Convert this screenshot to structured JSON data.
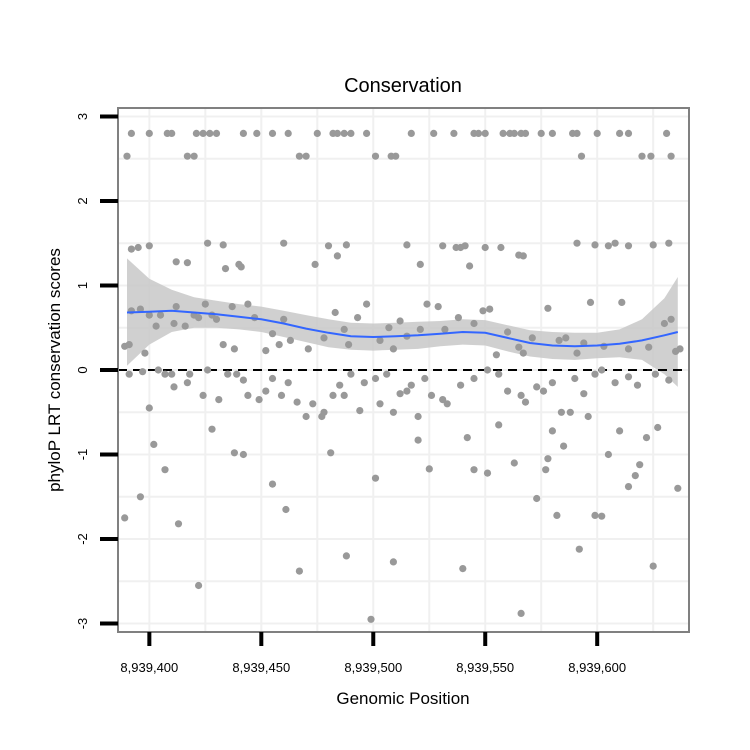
{
  "chart_data": {
    "type": "scatter",
    "title": "Conservation",
    "xlabel": "Genomic Position",
    "ylabel": "phyloP LRT conservation scores",
    "xlim": [
      8939386,
      8939641
    ],
    "ylim": [
      -3.1,
      3.1
    ],
    "x_ticks": [
      8939400,
      8939450,
      8939500,
      8939550,
      8939600
    ],
    "x_tick_labels": [
      "8,939,400",
      "8,939,450",
      "8,939,500",
      "8,939,550",
      "8,939,600"
    ],
    "y_ticks": [
      3,
      2,
      1,
      0,
      -1,
      -2,
      -3
    ],
    "y_tick_labels": [
      "3",
      "2",
      "1",
      "0",
      "-1",
      "-2",
      "-3"
    ],
    "grid": true,
    "reference_line": {
      "y": 0,
      "style": "dashed"
    },
    "colors": {
      "points": "#999999",
      "smooth": "#3366ff",
      "band": "#c8c8c8",
      "panel_border": "#808080",
      "grid": "#f0f0f0"
    },
    "points": [
      [
        8939390,
        2.53
      ],
      [
        8939392,
        2.8
      ],
      [
        8939400,
        2.8
      ],
      [
        8939408,
        2.8
      ],
      [
        8939410,
        2.8
      ],
      [
        8939417,
        2.53
      ],
      [
        8939420,
        2.53
      ],
      [
        8939421,
        2.8
      ],
      [
        8939424,
        2.8
      ],
      [
        8939427,
        2.8
      ],
      [
        8939430,
        2.8
      ],
      [
        8939442,
        2.8
      ],
      [
        8939448,
        2.8
      ],
      [
        8939455,
        2.8
      ],
      [
        8939462,
        2.8
      ],
      [
        8939467,
        2.53
      ],
      [
        8939470,
        2.53
      ],
      [
        8939475,
        2.8
      ],
      [
        8939482,
        2.8
      ],
      [
        8939484,
        2.8
      ],
      [
        8939487,
        2.8
      ],
      [
        8939490,
        2.8
      ],
      [
        8939497,
        2.8
      ],
      [
        8939501,
        2.53
      ],
      [
        8939508,
        2.53
      ],
      [
        8939510,
        2.53
      ],
      [
        8939517,
        2.8
      ],
      [
        8939527,
        2.8
      ],
      [
        8939536,
        2.8
      ],
      [
        8939545,
        2.8
      ],
      [
        8939547,
        2.8
      ],
      [
        8939550,
        2.8
      ],
      [
        8939558,
        2.8
      ],
      [
        8939561,
        2.8
      ],
      [
        8939563,
        2.8
      ],
      [
        8939566,
        2.8
      ],
      [
        8939568,
        2.8
      ],
      [
        8939575,
        2.8
      ],
      [
        8939580,
        2.8
      ],
      [
        8939589,
        2.8
      ],
      [
        8939591,
        2.8
      ],
      [
        8939593,
        2.53
      ],
      [
        8939600,
        2.8
      ],
      [
        8939610,
        2.8
      ],
      [
        8939614,
        2.8
      ],
      [
        8939620,
        2.53
      ],
      [
        8939624,
        2.53
      ],
      [
        8939631,
        2.8
      ],
      [
        8939633,
        2.53
      ],
      [
        8939392,
        1.43
      ],
      [
        8939395,
        1.45
      ],
      [
        8939400,
        1.47
      ],
      [
        8939412,
        1.28
      ],
      [
        8939417,
        1.27
      ],
      [
        8939426,
        1.5
      ],
      [
        8939433,
        1.48
      ],
      [
        8939434,
        1.2
      ],
      [
        8939440,
        1.25
      ],
      [
        8939441,
        1.22
      ],
      [
        8939460,
        1.5
      ],
      [
        8939474,
        1.25
      ],
      [
        8939480,
        1.47
      ],
      [
        8939484,
        1.35
      ],
      [
        8939488,
        1.48
      ],
      [
        8939515,
        1.48
      ],
      [
        8939521,
        1.25
      ],
      [
        8939531,
        1.47
      ],
      [
        8939537,
        1.45
      ],
      [
        8939539,
        1.45
      ],
      [
        8939541,
        1.47
      ],
      [
        8939543,
        1.23
      ],
      [
        8939550,
        1.45
      ],
      [
        8939557,
        1.45
      ],
      [
        8939565,
        1.36
      ],
      [
        8939567,
        1.35
      ],
      [
        8939591,
        1.5
      ],
      [
        8939599,
        1.48
      ],
      [
        8939605,
        1.47
      ],
      [
        8939608,
        1.5
      ],
      [
        8939614,
        1.47
      ],
      [
        8939625,
        1.48
      ],
      [
        8939632,
        1.5
      ],
      [
        8939389,
        0.28
      ],
      [
        8939391,
        0.3
      ],
      [
        8939392,
        0.7
      ],
      [
        8939396,
        0.72
      ],
      [
        8939398,
        0.2
      ],
      [
        8939400,
        0.65
      ],
      [
        8939403,
        0.52
      ],
      [
        8939405,
        0.65
      ],
      [
        8939411,
        0.55
      ],
      [
        8939412,
        0.75
      ],
      [
        8939416,
        0.52
      ],
      [
        8939420,
        0.65
      ],
      [
        8939422,
        0.62
      ],
      [
        8939425,
        0.78
      ],
      [
        8939428,
        0.65
      ],
      [
        8939430,
        0.6
      ],
      [
        8939433,
        0.3
      ],
      [
        8939437,
        0.75
      ],
      [
        8939438,
        0.25
      ],
      [
        8939444,
        0.78
      ],
      [
        8939447,
        0.62
      ],
      [
        8939452,
        0.23
      ],
      [
        8939455,
        0.43
      ],
      [
        8939458,
        0.3
      ],
      [
        8939460,
        0.6
      ],
      [
        8939463,
        0.35
      ],
      [
        8939471,
        0.25
      ],
      [
        8939478,
        0.38
      ],
      [
        8939483,
        0.68
      ],
      [
        8939487,
        0.48
      ],
      [
        8939489,
        0.3
      ],
      [
        8939493,
        0.62
      ],
      [
        8939497,
        0.78
      ],
      [
        8939503,
        0.35
      ],
      [
        8939507,
        0.5
      ],
      [
        8939509,
        0.25
      ],
      [
        8939512,
        0.58
      ],
      [
        8939515,
        0.4
      ],
      [
        8939521,
        0.48
      ],
      [
        8939524,
        0.78
      ],
      [
        8939529,
        0.75
      ],
      [
        8939532,
        0.48
      ],
      [
        8939538,
        0.62
      ],
      [
        8939545,
        0.55
      ],
      [
        8939549,
        0.7
      ],
      [
        8939552,
        0.72
      ],
      [
        8939555,
        0.18
      ],
      [
        8939560,
        0.45
      ],
      [
        8939565,
        0.27
      ],
      [
        8939567,
        0.2
      ],
      [
        8939571,
        0.38
      ],
      [
        8939578,
        0.73
      ],
      [
        8939583,
        0.35
      ],
      [
        8939586,
        0.38
      ],
      [
        8939591,
        0.2
      ],
      [
        8939594,
        0.32
      ],
      [
        8939597,
        0.8
      ],
      [
        8939603,
        0.28
      ],
      [
        8939611,
        0.8
      ],
      [
        8939614,
        0.25
      ],
      [
        8939623,
        0.27
      ],
      [
        8939630,
        0.55
      ],
      [
        8939633,
        0.6
      ],
      [
        8939635,
        0.22
      ],
      [
        8939637,
        0.25
      ],
      [
        8939391,
        -0.05
      ],
      [
        8939397,
        -0.02
      ],
      [
        8939400,
        -0.45
      ],
      [
        8939404,
        0.0
      ],
      [
        8939407,
        -0.05
      ],
      [
        8939410,
        -0.05
      ],
      [
        8939411,
        -0.2
      ],
      [
        8939417,
        -0.15
      ],
      [
        8939418,
        -0.05
      ],
      [
        8939424,
        -0.3
      ],
      [
        8939426,
        0.0
      ],
      [
        8939431,
        -0.35
      ],
      [
        8939435,
        -0.05
      ],
      [
        8939439,
        -0.05
      ],
      [
        8939442,
        -0.12
      ],
      [
        8939444,
        -0.3
      ],
      [
        8939449,
        -0.35
      ],
      [
        8939452,
        -0.25
      ],
      [
        8939455,
        -0.1
      ],
      [
        8939459,
        -0.3
      ],
      [
        8939462,
        -0.15
      ],
      [
        8939466,
        -0.38
      ],
      [
        8939470,
        -0.55
      ],
      [
        8939473,
        -0.4
      ],
      [
        8939477,
        -0.55
      ],
      [
        8939478,
        -0.5
      ],
      [
        8939482,
        -0.3
      ],
      [
        8939485,
        -0.18
      ],
      [
        8939487,
        -0.3
      ],
      [
        8939490,
        -0.05
      ],
      [
        8939494,
        -0.48
      ],
      [
        8939496,
        -0.15
      ],
      [
        8939501,
        -0.1
      ],
      [
        8939503,
        -0.4
      ],
      [
        8939506,
        -0.05
      ],
      [
        8939509,
        -0.5
      ],
      [
        8939512,
        -0.28
      ],
      [
        8939515,
        -0.25
      ],
      [
        8939517,
        -0.18
      ],
      [
        8939520,
        -0.55
      ],
      [
        8939523,
        -0.1
      ],
      [
        8939526,
        -0.3
      ],
      [
        8939531,
        -0.35
      ],
      [
        8939533,
        -0.4
      ],
      [
        8939539,
        -0.18
      ],
      [
        8939545,
        -0.1
      ],
      [
        8939551,
        0.0
      ],
      [
        8939556,
        -0.05
      ],
      [
        8939560,
        -0.25
      ],
      [
        8939566,
        -0.3
      ],
      [
        8939568,
        -0.38
      ],
      [
        8939573,
        -0.2
      ],
      [
        8939576,
        -0.25
      ],
      [
        8939580,
        -0.15
      ],
      [
        8939584,
        -0.5
      ],
      [
        8939588,
        -0.5
      ],
      [
        8939590,
        -0.1
      ],
      [
        8939594,
        -0.28
      ],
      [
        8939599,
        -0.05
      ],
      [
        8939602,
        0.0
      ],
      [
        8939608,
        -0.15
      ],
      [
        8939614,
        -0.08
      ],
      [
        8939618,
        -0.18
      ],
      [
        8939626,
        -0.05
      ],
      [
        8939632,
        -0.12
      ],
      [
        8939389,
        -1.75
      ],
      [
        8939396,
        -1.5
      ],
      [
        8939402,
        -0.88
      ],
      [
        8939407,
        -1.18
      ],
      [
        8939413,
        -1.82
      ],
      [
        8939422,
        -2.55
      ],
      [
        8939428,
        -0.7
      ],
      [
        8939438,
        -0.98
      ],
      [
        8939442,
        -1.0
      ],
      [
        8939455,
        -1.35
      ],
      [
        8939461,
        -1.65
      ],
      [
        8939467,
        -2.38
      ],
      [
        8939481,
        -0.98
      ],
      [
        8939488,
        -2.2
      ],
      [
        8939499,
        -2.95
      ],
      [
        8939501,
        -1.28
      ],
      [
        8939509,
        -2.27
      ],
      [
        8939520,
        -0.83
      ],
      [
        8939525,
        -1.17
      ],
      [
        8939540,
        -2.35
      ],
      [
        8939542,
        -0.8
      ],
      [
        8939545,
        -1.18
      ],
      [
        8939551,
        -1.22
      ],
      [
        8939556,
        -0.65
      ],
      [
        8939563,
        -1.1
      ],
      [
        8939566,
        -2.88
      ],
      [
        8939573,
        -1.52
      ],
      [
        8939577,
        -1.18
      ],
      [
        8939578,
        -1.05
      ],
      [
        8939580,
        -0.72
      ],
      [
        8939582,
        -1.72
      ],
      [
        8939585,
        -0.9
      ],
      [
        8939592,
        -2.12
      ],
      [
        8939596,
        -0.55
      ],
      [
        8939599,
        -1.72
      ],
      [
        8939602,
        -1.73
      ],
      [
        8939605,
        -1.0
      ],
      [
        8939610,
        -0.72
      ],
      [
        8939614,
        -1.38
      ],
      [
        8939617,
        -1.25
      ],
      [
        8939619,
        -1.12
      ],
      [
        8939622,
        -0.8
      ],
      [
        8939625,
        -2.32
      ],
      [
        8939627,
        -0.68
      ],
      [
        8939636,
        -1.4
      ]
    ],
    "smooth": {
      "x": [
        8939390,
        8939400,
        8939410,
        8939420,
        8939430,
        8939440,
        8939450,
        8939460,
        8939470,
        8939480,
        8939490,
        8939500,
        8939510,
        8939520,
        8939530,
        8939540,
        8939550,
        8939560,
        8939570,
        8939580,
        8939590,
        8939600,
        8939610,
        8939620,
        8939630,
        8939636
      ],
      "y": [
        0.68,
        0.69,
        0.7,
        0.68,
        0.66,
        0.63,
        0.6,
        0.55,
        0.49,
        0.44,
        0.4,
        0.39,
        0.4,
        0.41,
        0.43,
        0.45,
        0.44,
        0.38,
        0.32,
        0.29,
        0.28,
        0.29,
        0.31,
        0.35,
        0.41,
        0.45
      ],
      "lower": [
        0.05,
        0.3,
        0.45,
        0.5,
        0.5,
        0.48,
        0.45,
        0.39,
        0.33,
        0.27,
        0.24,
        0.23,
        0.24,
        0.25,
        0.28,
        0.3,
        0.29,
        0.22,
        0.16,
        0.13,
        0.12,
        0.14,
        0.15,
        0.12,
        -0.05,
        -0.2
      ],
      "upper": [
        1.32,
        1.08,
        0.95,
        0.86,
        0.82,
        0.78,
        0.75,
        0.7,
        0.65,
        0.6,
        0.56,
        0.55,
        0.56,
        0.57,
        0.58,
        0.6,
        0.59,
        0.53,
        0.47,
        0.45,
        0.44,
        0.44,
        0.48,
        0.6,
        0.85,
        1.1
      ]
    }
  }
}
